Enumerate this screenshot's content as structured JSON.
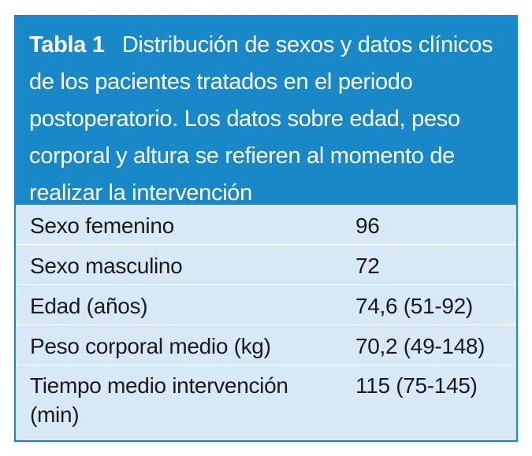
{
  "table": {
    "label": "Tabla 1",
    "caption": "Distribución de sexos y datos clínicos de los pacientes tratados en el periodo postoperatorio. Los datos sobre edad, peso corporal y altura se refieren al momento de realizar la intervención",
    "rows": [
      {
        "name": "Sexo femenino",
        "value": "96"
      },
      {
        "name": "Sexo masculino",
        "value": "72"
      },
      {
        "name": "Edad (años)",
        "value": "74,6 (51-92)"
      },
      {
        "name": "Peso corporal medio (kg)",
        "value": "70,2 (49-148)"
      },
      {
        "name": "Tiempo medio intervención (min)",
        "value": "115 (75-145)"
      }
    ]
  },
  "colors": {
    "header_bg": "#1888c8",
    "body_bg": "#d7e8f6",
    "header_text": "#ffffff",
    "body_text": "#1a1a1a"
  }
}
